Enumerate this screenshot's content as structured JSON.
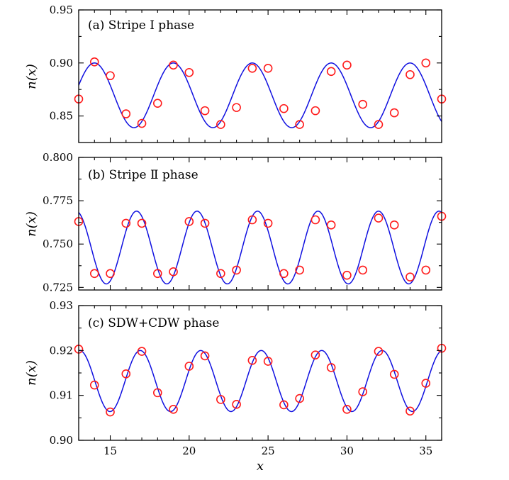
{
  "colors": {
    "fit_line": "#1010e0",
    "markers": "#ff1a1a",
    "axes": "#000000"
  },
  "chart_data": [
    {
      "type": "line",
      "panel": "(a)",
      "title": "(a)  Stripe I phase",
      "ylabel": "n(x)",
      "xlabel": "",
      "xlim": [
        13,
        36
      ],
      "ylim": [
        0.825,
        0.95
      ],
      "yticks": [
        0.85,
        0.9,
        0.95
      ],
      "ytick_labels": [
        "0.85",
        "0.90",
        "0.95"
      ],
      "xticks": [
        15,
        20,
        25,
        30,
        35
      ],
      "xtick_labels": [],
      "fit": {
        "mean": 0.8695,
        "amplitude": 0.0305,
        "period": 5.0,
        "peak_x": 14.0
      },
      "series": [
        {
          "x": [
            13,
            14,
            15,
            16,
            17,
            18,
            19,
            20,
            21,
            22,
            23,
            24,
            25,
            26,
            27,
            28,
            29,
            30,
            31,
            32,
            33,
            34,
            35,
            36
          ],
          "values": [
            0.866,
            0.901,
            0.888,
            0.852,
            0.843,
            0.862,
            0.898,
            0.891,
            0.855,
            0.842,
            0.858,
            0.895,
            0.895,
            0.857,
            0.842,
            0.855,
            0.892,
            0.898,
            0.861,
            0.842,
            0.853,
            0.889,
            0.9,
            0.866
          ]
        }
      ]
    },
    {
      "type": "line",
      "panel": "(b)",
      "title": "(b)  Stripe Ⅱ phase",
      "ylabel": "n(x)",
      "xlabel": "",
      "xlim": [
        13,
        36
      ],
      "ylim": [
        0.7235,
        0.8
      ],
      "yticks": [
        0.725,
        0.75,
        0.775,
        0.8
      ],
      "ytick_labels": [
        "0.725",
        "0.750",
        "0.775",
        "0.800"
      ],
      "xticks": [
        15,
        20,
        25,
        30,
        35
      ],
      "xtick_labels": [],
      "fit": {
        "mean": 0.748,
        "amplitude": 0.021,
        "period": 3.833,
        "peak_x": 16.667
      },
      "series": [
        {
          "x": [
            13,
            14,
            15,
            16,
            17,
            18,
            19,
            20,
            21,
            22,
            23,
            24,
            25,
            26,
            27,
            28,
            29,
            30,
            31,
            32,
            33,
            34,
            35,
            36
          ],
          "values": [
            0.763,
            0.733,
            0.733,
            0.762,
            0.762,
            0.733,
            0.734,
            0.763,
            0.762,
            0.733,
            0.735,
            0.764,
            0.762,
            0.733,
            0.735,
            0.764,
            0.761,
            0.732,
            0.735,
            0.765,
            0.761,
            0.731,
            0.735,
            0.766
          ]
        }
      ]
    },
    {
      "type": "line",
      "panel": "(c)",
      "title": "(c)  SDW+CDW phase",
      "ylabel": "n(x)",
      "xlabel": "x",
      "xlim": [
        13,
        36
      ],
      "ylim": [
        0.9,
        0.93
      ],
      "yticks": [
        0.9,
        0.91,
        0.92,
        0.93
      ],
      "ytick_labels": [
        "0.90",
        "0.91",
        "0.92",
        "0.93"
      ],
      "xticks": [
        15,
        20,
        25,
        30,
        35
      ],
      "xtick_labels": [
        "15",
        "20",
        "25",
        "30",
        "35"
      ],
      "fit": {
        "mean": 0.9132,
        "amplitude": 0.0068,
        "period": 3.833,
        "peak_x": 16.9
      },
      "series": [
        {
          "x": [
            13,
            14,
            15,
            16,
            17,
            18,
            19,
            20,
            21,
            22,
            23,
            24,
            25,
            26,
            27,
            28,
            29,
            30,
            31,
            32,
            33,
            34,
            35,
            36
          ],
          "values": [
            0.9203,
            0.9123,
            0.9063,
            0.9148,
            0.9198,
            0.9106,
            0.9069,
            0.9165,
            0.9188,
            0.9091,
            0.908,
            0.9178,
            0.9176,
            0.9079,
            0.9093,
            0.919,
            0.9162,
            0.9069,
            0.9108,
            0.9198,
            0.9147,
            0.9065,
            0.9127,
            0.9205
          ]
        }
      ]
    }
  ]
}
